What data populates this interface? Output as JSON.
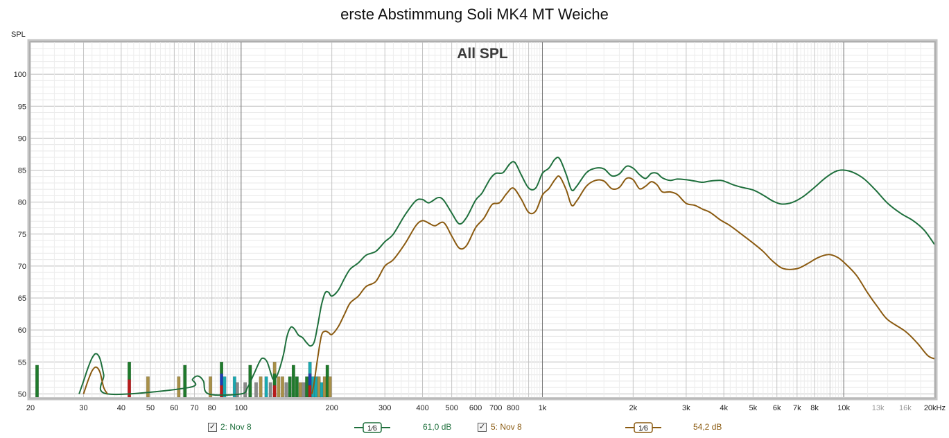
{
  "title": "erste Abstimmung Soli MK4 MT Weiche",
  "inner_title": "All SPL",
  "legend": {
    "item1": {
      "label": "2: Nov 8",
      "smoothing": "1⁄6",
      "level": "61,0 dB",
      "checked": "✓",
      "color": "#1e6f3c"
    },
    "item2": {
      "label": "5: Nov 8",
      "smoothing": "1⁄6",
      "level": "54,2 dB",
      "checked": "✓",
      "color": "#8a5a10"
    }
  },
  "chart_data": {
    "type": "line",
    "title": "All SPL",
    "ylabel": "SPL",
    "xlabel": "",
    "x_scale": "log",
    "xlim": [
      20,
      20000
    ],
    "ylim": [
      49.5,
      105
    ],
    "grid": true,
    "x_ticks": [
      {
        "v": 20,
        "t": "20"
      },
      {
        "v": 30,
        "t": "30"
      },
      {
        "v": 40,
        "t": "40"
      },
      {
        "v": 50,
        "t": "50"
      },
      {
        "v": 60,
        "t": "60"
      },
      {
        "v": 70,
        "t": "70"
      },
      {
        "v": 80,
        "t": "80"
      },
      {
        "v": 100,
        "t": "100"
      },
      {
        "v": 200,
        "t": "200"
      },
      {
        "v": 300,
        "t": "300"
      },
      {
        "v": 400,
        "t": "400"
      },
      {
        "v": 500,
        "t": "500"
      },
      {
        "v": 600,
        "t": "600"
      },
      {
        "v": 700,
        "t": "700"
      },
      {
        "v": 800,
        "t": "800"
      },
      {
        "v": 1000,
        "t": "1k"
      },
      {
        "v": 2000,
        "t": "2k"
      },
      {
        "v": 3000,
        "t": "3k"
      },
      {
        "v": 4000,
        "t": "4k"
      },
      {
        "v": 5000,
        "t": "5k"
      },
      {
        "v": 6000,
        "t": "6k"
      },
      {
        "v": 7000,
        "t": "7k"
      },
      {
        "v": 8000,
        "t": "8k"
      },
      {
        "v": 10000,
        "t": "10k"
      },
      {
        "v": 13000,
        "t": "13k"
      },
      {
        "v": 16000,
        "t": "16k"
      },
      {
        "v": 20000,
        "t": "20kHz"
      }
    ],
    "y_ticks": [
      50,
      55,
      60,
      65,
      70,
      75,
      80,
      85,
      90,
      95,
      100
    ],
    "series": [
      {
        "name": "2: Nov 8",
        "color": "#1e6f3c",
        "points": [
          [
            29,
            50
          ],
          [
            30,
            52
          ],
          [
            31,
            54
          ],
          [
            32,
            55.6
          ],
          [
            33,
            56.3
          ],
          [
            34,
            55.5
          ],
          [
            35,
            53
          ],
          [
            36,
            50
          ],
          [
            67,
            51
          ],
          [
            69,
            52.3
          ],
          [
            72,
            52.8
          ],
          [
            75,
            52
          ],
          [
            78,
            50
          ],
          [
            100,
            50
          ],
          [
            105,
            51
          ],
          [
            110,
            53
          ],
          [
            115,
            55
          ],
          [
            118,
            55.6
          ],
          [
            122,
            55
          ],
          [
            126,
            53
          ],
          [
            128,
            52.3
          ],
          [
            132,
            53
          ],
          [
            138,
            56
          ],
          [
            142,
            59
          ],
          [
            146,
            60.4
          ],
          [
            150,
            60.2
          ],
          [
            155,
            59.2
          ],
          [
            160,
            58.8
          ],
          [
            165,
            58
          ],
          [
            170,
            57.5
          ],
          [
            175,
            58.2
          ],
          [
            180,
            61
          ],
          [
            185,
            64
          ],
          [
            190,
            65.8
          ],
          [
            195,
            65.9
          ],
          [
            200,
            65.3
          ],
          [
            210,
            66.2
          ],
          [
            220,
            68
          ],
          [
            230,
            69.5
          ],
          [
            245,
            70.5
          ],
          [
            260,
            71.7
          ],
          [
            280,
            72.3
          ],
          [
            300,
            73.8
          ],
          [
            320,
            75
          ],
          [
            350,
            78
          ],
          [
            380,
            80.2
          ],
          [
            400,
            80.4
          ],
          [
            420,
            79.9
          ],
          [
            450,
            80.7
          ],
          [
            470,
            80.3
          ],
          [
            500,
            78.3
          ],
          [
            530,
            76.6
          ],
          [
            560,
            77.6
          ],
          [
            600,
            80.3
          ],
          [
            630,
            81.4
          ],
          [
            670,
            83.6
          ],
          [
            700,
            84.5
          ],
          [
            740,
            84.6
          ],
          [
            780,
            86
          ],
          [
            810,
            86.2
          ],
          [
            850,
            84.3
          ],
          [
            900,
            82.2
          ],
          [
            950,
            82.2
          ],
          [
            1000,
            84.5
          ],
          [
            1050,
            85.3
          ],
          [
            1100,
            86.7
          ],
          [
            1140,
            86.8
          ],
          [
            1200,
            84.3
          ],
          [
            1250,
            81.9
          ],
          [
            1300,
            82.5
          ],
          [
            1400,
            84.6
          ],
          [
            1500,
            85.3
          ],
          [
            1600,
            85.2
          ],
          [
            1700,
            84.1
          ],
          [
            1800,
            84.4
          ],
          [
            1900,
            85.6
          ],
          [
            2000,
            85.3
          ],
          [
            2100,
            84.3
          ],
          [
            2200,
            83.7
          ],
          [
            2300,
            84.5
          ],
          [
            2400,
            84.5
          ],
          [
            2500,
            83.8
          ],
          [
            2650,
            83.4
          ],
          [
            2800,
            83.6
          ],
          [
            3000,
            83.5
          ],
          [
            3200,
            83.3
          ],
          [
            3400,
            83.1
          ],
          [
            3600,
            83.3
          ],
          [
            3900,
            83.4
          ],
          [
            4100,
            83.1
          ],
          [
            4300,
            82.7
          ],
          [
            4600,
            82.3
          ],
          [
            5000,
            81.9
          ],
          [
            5400,
            81.1
          ],
          [
            5800,
            80.2
          ],
          [
            6200,
            79.7
          ],
          [
            6700,
            79.9
          ],
          [
            7300,
            80.8
          ],
          [
            8000,
            82.3
          ],
          [
            8700,
            83.8
          ],
          [
            9400,
            84.8
          ],
          [
            10000,
            85
          ],
          [
            10800,
            84.6
          ],
          [
            11700,
            83.6
          ],
          [
            12800,
            81.8
          ],
          [
            14000,
            79.8
          ],
          [
            15500,
            78.2
          ],
          [
            17000,
            77.1
          ],
          [
            18500,
            75.6
          ],
          [
            20000,
            73.4
          ]
        ]
      },
      {
        "name": "5: Nov 8",
        "color": "#8a5a10",
        "points": [
          [
            30,
            50
          ],
          [
            31,
            52
          ],
          [
            32,
            53.6
          ],
          [
            33,
            54.2
          ],
          [
            34,
            53.4
          ],
          [
            35,
            51
          ],
          [
            36,
            50
          ],
          [
            172,
            50
          ],
          [
            175,
            52
          ],
          [
            180,
            56
          ],
          [
            185,
            59.2
          ],
          [
            190,
            59.8
          ],
          [
            195,
            59.6
          ],
          [
            200,
            59.3
          ],
          [
            210,
            60.5
          ],
          [
            220,
            62.4
          ],
          [
            230,
            64.2
          ],
          [
            245,
            65.3
          ],
          [
            260,
            66.8
          ],
          [
            280,
            67.6
          ],
          [
            300,
            70
          ],
          [
            320,
            71
          ],
          [
            350,
            73.5
          ],
          [
            380,
            76.3
          ],
          [
            400,
            77.1
          ],
          [
            420,
            76.7
          ],
          [
            440,
            76.3
          ],
          [
            470,
            76.8
          ],
          [
            500,
            74.7
          ],
          [
            530,
            72.8
          ],
          [
            560,
            73.2
          ],
          [
            600,
            76
          ],
          [
            640,
            77.5
          ],
          [
            680,
            79.6
          ],
          [
            720,
            79.9
          ],
          [
            760,
            81.3
          ],
          [
            800,
            82.2
          ],
          [
            850,
            80.5
          ],
          [
            900,
            78.4
          ],
          [
            950,
            78.6
          ],
          [
            1000,
            81.1
          ],
          [
            1050,
            82.1
          ],
          [
            1100,
            83.5
          ],
          [
            1140,
            84
          ],
          [
            1200,
            81.9
          ],
          [
            1250,
            79.5
          ],
          [
            1300,
            80.2
          ],
          [
            1400,
            82.5
          ],
          [
            1500,
            83.4
          ],
          [
            1600,
            83.3
          ],
          [
            1700,
            82.1
          ],
          [
            1800,
            82.3
          ],
          [
            1900,
            83.7
          ],
          [
            2000,
            83.5
          ],
          [
            2100,
            82.1
          ],
          [
            2200,
            82.5
          ],
          [
            2300,
            83.2
          ],
          [
            2400,
            82.7
          ],
          [
            2500,
            81.6
          ],
          [
            2650,
            81.6
          ],
          [
            2800,
            81.2
          ],
          [
            3000,
            79.8
          ],
          [
            3200,
            79.5
          ],
          [
            3400,
            78.9
          ],
          [
            3600,
            78.4
          ],
          [
            3900,
            77.2
          ],
          [
            4200,
            76.3
          ],
          [
            4600,
            74.9
          ],
          [
            5000,
            73.6
          ],
          [
            5400,
            72.3
          ],
          [
            5800,
            70.8
          ],
          [
            6300,
            69.6
          ],
          [
            7000,
            69.6
          ],
          [
            7600,
            70.4
          ],
          [
            8200,
            71.3
          ],
          [
            8900,
            71.8
          ],
          [
            9500,
            71.4
          ],
          [
            10000,
            70.6
          ],
          [
            11000,
            68.6
          ],
          [
            12000,
            65.8
          ],
          [
            13000,
            63.5
          ],
          [
            14000,
            61.6
          ],
          [
            16000,
            59.8
          ],
          [
            17500,
            58
          ],
          [
            19000,
            56
          ],
          [
            20000,
            55.5
          ]
        ]
      }
    ],
    "bar_colors": [
      "#1f7a2c",
      "#a89048",
      "#1e3fb0",
      "#1aa8b0",
      "#8a8a8a",
      "#b81c1c"
    ],
    "bars": [
      {
        "f": 21,
        "top": 54.5,
        "c": [
          0
        ]
      },
      {
        "f": 42.5,
        "top": 55,
        "c": [
          0,
          5
        ]
      },
      {
        "f": 49,
        "top": 52.7,
        "c": [
          1
        ]
      },
      {
        "f": 62,
        "top": 52.7,
        "c": [
          1
        ]
      },
      {
        "f": 65,
        "top": 54.5,
        "c": [
          0
        ]
      },
      {
        "f": 79,
        "top": 52.7,
        "c": [
          1
        ]
      },
      {
        "f": 86,
        "top": 55,
        "c": [
          0,
          2,
          5
        ]
      },
      {
        "f": 88,
        "top": 52.7,
        "c": [
          3
        ]
      },
      {
        "f": 95,
        "top": 52.7,
        "c": [
          3
        ]
      },
      {
        "f": 97,
        "top": 51.8,
        "c": [
          4
        ]
      },
      {
        "f": 103,
        "top": 51.8,
        "c": [
          4
        ]
      },
      {
        "f": 107,
        "top": 54.5,
        "c": [
          0
        ]
      },
      {
        "f": 112,
        "top": 51.8,
        "c": [
          4
        ]
      },
      {
        "f": 116,
        "top": 52.7,
        "c": [
          1
        ]
      },
      {
        "f": 121,
        "top": 52.7,
        "c": [
          3
        ]
      },
      {
        "f": 125,
        "top": 51.8,
        "c": [
          4
        ]
      },
      {
        "f": 129,
        "top": 55,
        "c": [
          1,
          0,
          5
        ]
      },
      {
        "f": 133,
        "top": 52.7,
        "c": [
          1
        ]
      },
      {
        "f": 137,
        "top": 52.7,
        "c": [
          1
        ]
      },
      {
        "f": 141,
        "top": 51.8,
        "c": [
          4
        ]
      },
      {
        "f": 145,
        "top": 52.7,
        "c": [
          0
        ]
      },
      {
        "f": 149,
        "top": 54.5,
        "c": [
          0
        ]
      },
      {
        "f": 153,
        "top": 52.7,
        "c": [
          0
        ]
      },
      {
        "f": 157,
        "top": 51.8,
        "c": [
          1
        ]
      },
      {
        "f": 161,
        "top": 51.8,
        "c": [
          4
        ]
      },
      {
        "f": 165,
        "top": 52.7,
        "c": [
          0
        ]
      },
      {
        "f": 169,
        "top": 55,
        "c": [
          3,
          2,
          5
        ]
      },
      {
        "f": 173,
        "top": 52.7,
        "c": [
          3
        ]
      },
      {
        "f": 177,
        "top": 52.7,
        "c": [
          3
        ]
      },
      {
        "f": 181,
        "top": 52.7,
        "c": [
          1
        ]
      },
      {
        "f": 185,
        "top": 51.8,
        "c": [
          3
        ]
      },
      {
        "f": 189,
        "top": 52.7,
        "c": [
          1
        ]
      },
      {
        "f": 193,
        "top": 54.5,
        "c": [
          0
        ]
      },
      {
        "f": 197,
        "top": 52.7,
        "c": [
          1
        ]
      }
    ]
  }
}
